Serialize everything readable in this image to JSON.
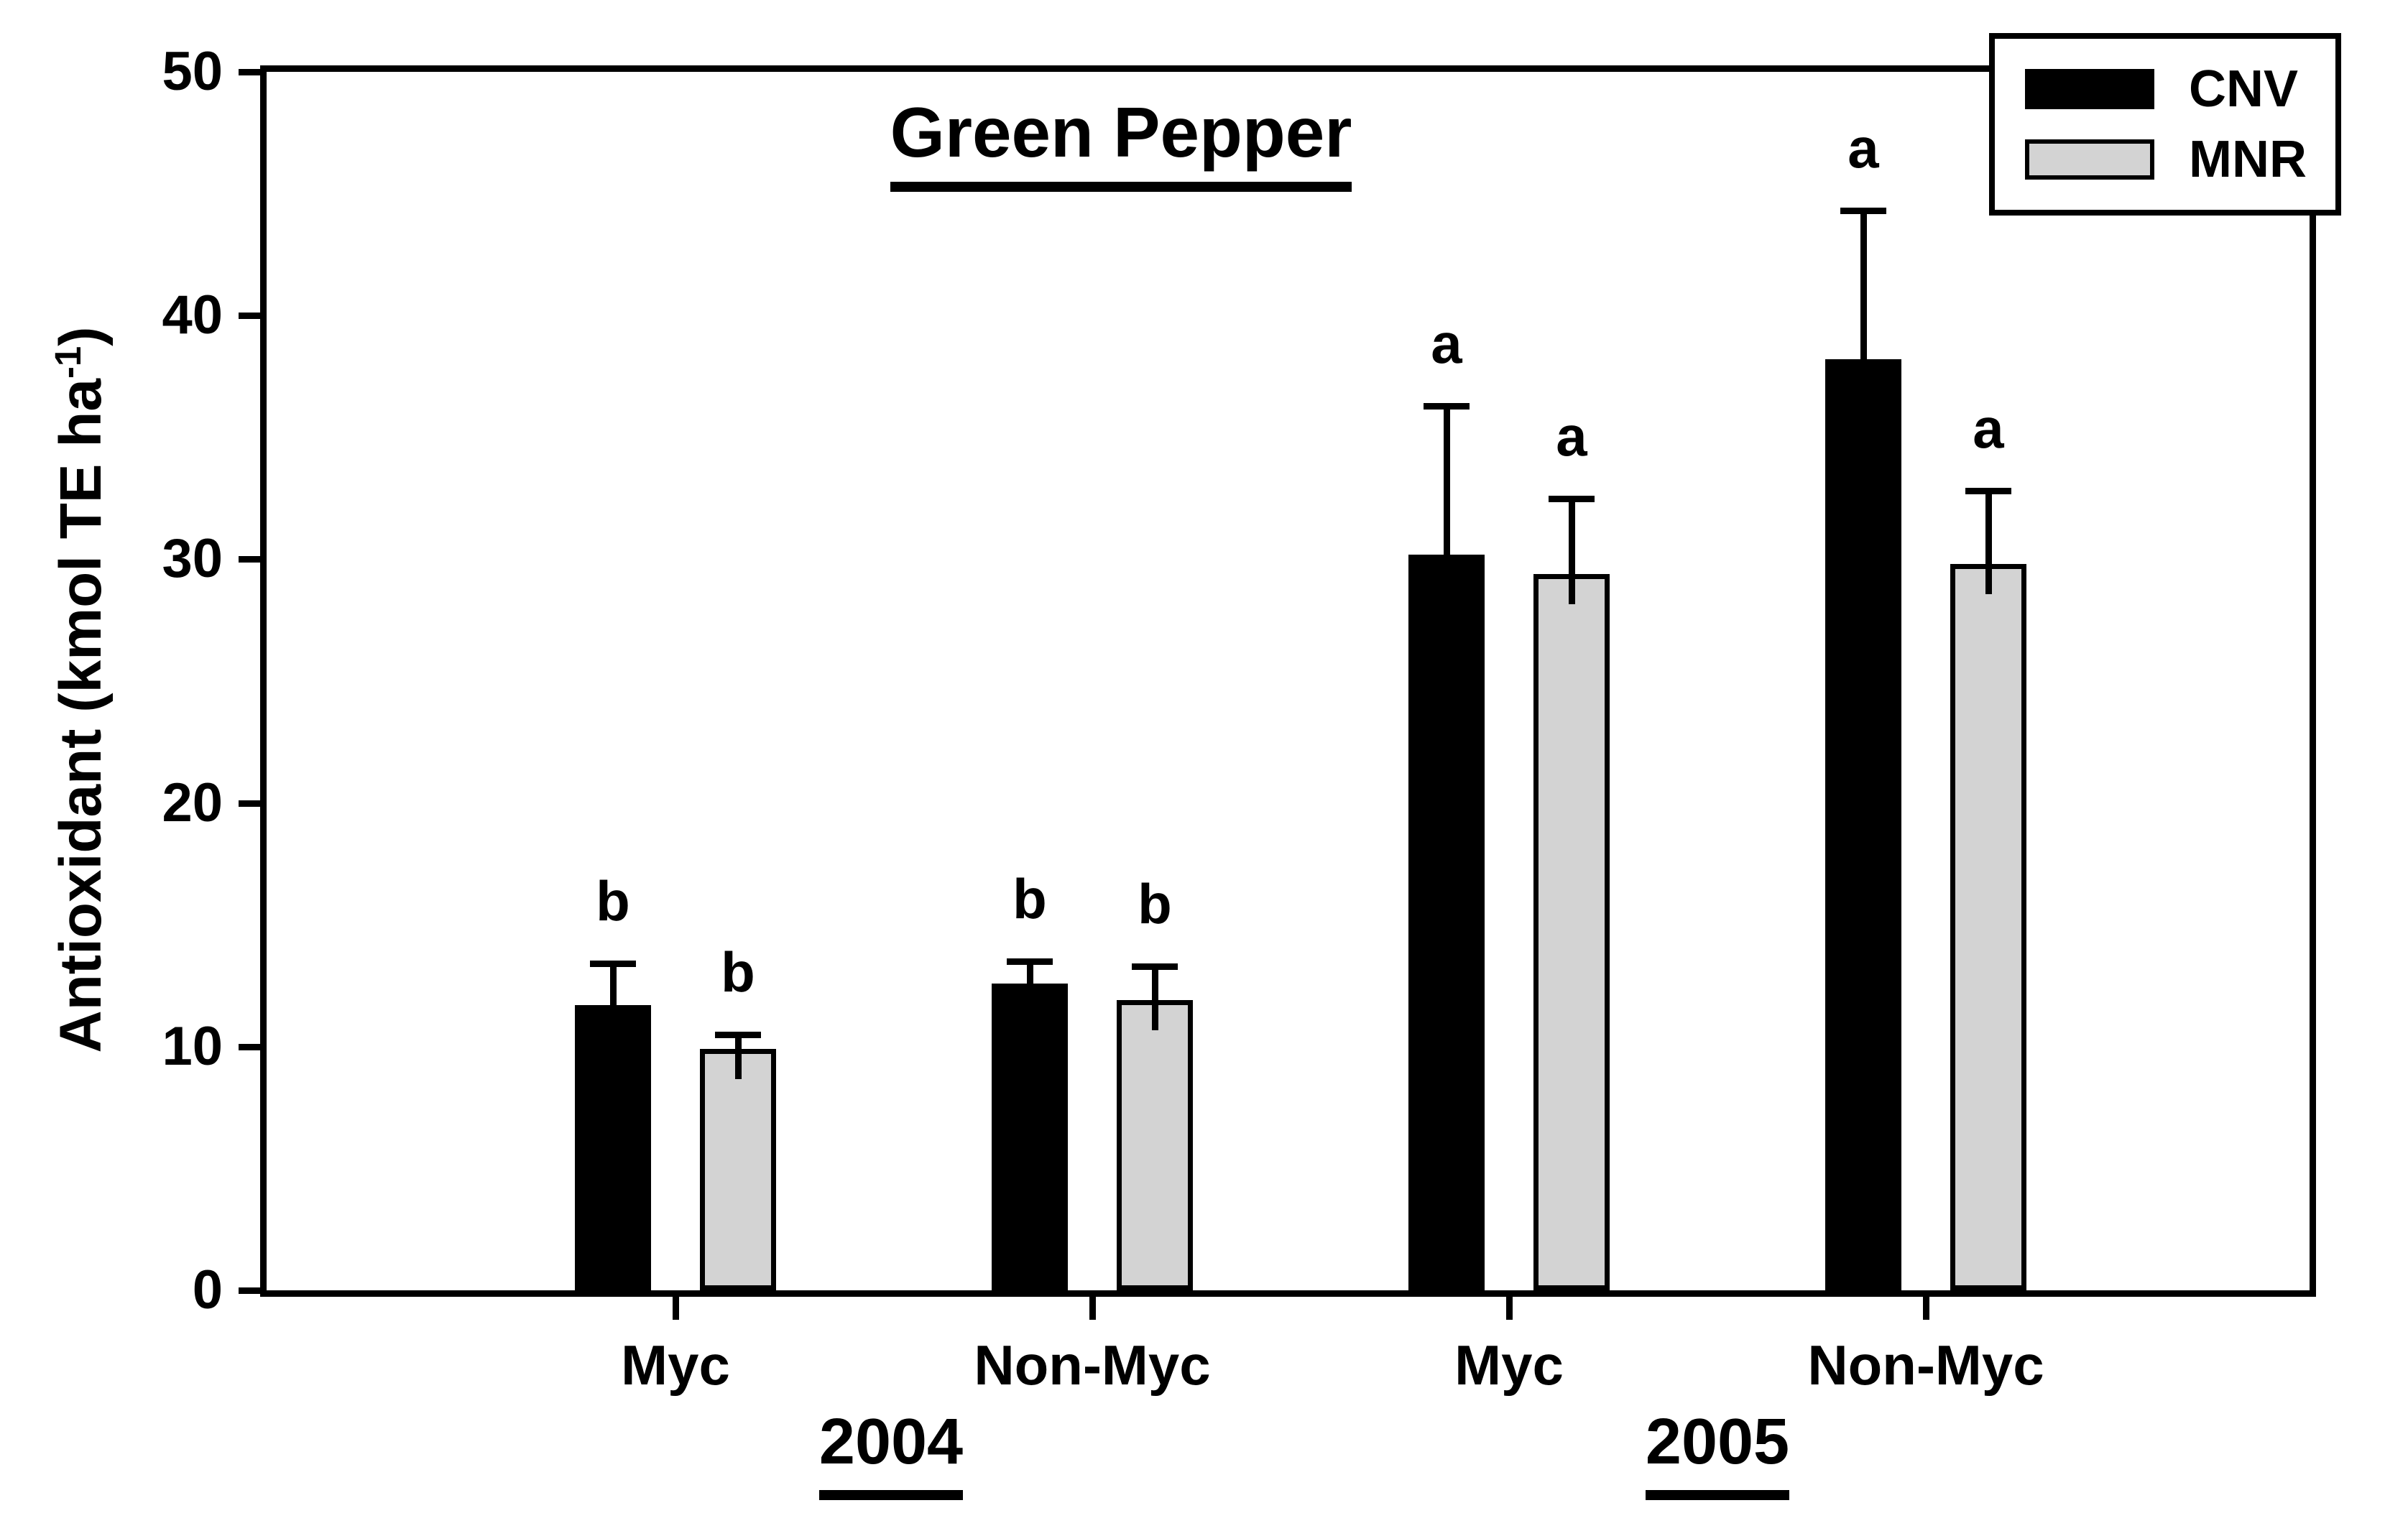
{
  "title": "Green Pepper",
  "y_axis": {
    "label_main": "Antioxidant (kmol TE ha",
    "label_sup": "-1",
    "label_end": ")",
    "tick_labels": [
      "0",
      "10",
      "20",
      "30",
      "40",
      "50"
    ],
    "tick_values": [
      0,
      10,
      20,
      30,
      40,
      50
    ]
  },
  "legend": {
    "items": [
      {
        "label": "CNV",
        "color": "#000000"
      },
      {
        "label": "MNR",
        "color": "#d3d3d3"
      }
    ]
  },
  "chart_data": {
    "type": "bar",
    "title": "Green Pepper",
    "xlabel": "",
    "ylabel": "Antioxidant (kmol TE ha-1)",
    "ylim": [
      0,
      50
    ],
    "grid": false,
    "legend_position": "top-right",
    "categories": [
      "Myc",
      "Non-Myc",
      "Myc",
      "Non-Myc"
    ],
    "year_labels": [
      "2004",
      "2005"
    ],
    "series": [
      {
        "name": "CNV",
        "color": "#000000",
        "values": [
          11.7,
          12.6,
          30.2,
          38.2
        ],
        "error_tops": [
          13.4,
          13.5,
          36.3,
          44.3
        ],
        "letters": [
          "b",
          "b",
          "a",
          "a"
        ]
      },
      {
        "name": "MNR",
        "color": "#d3d3d3",
        "values": [
          9.9,
          11.9,
          29.4,
          29.8
        ],
        "error_tops": [
          10.5,
          13.3,
          32.5,
          32.8
        ],
        "letters": [
          "b",
          "b",
          "a",
          "a"
        ]
      }
    ]
  }
}
